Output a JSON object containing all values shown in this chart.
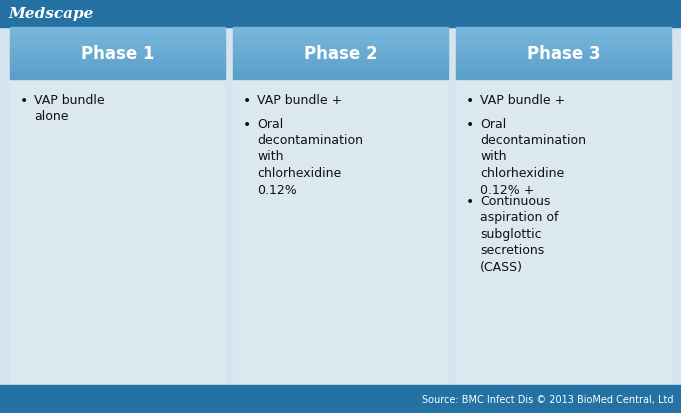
{
  "title": "Medscape",
  "title_color": "#ffffff",
  "top_bar_color": "#2471a3",
  "body_bg": "#d6e4f0",
  "cell_bg": "#dce8f0",
  "gap_color": "#ffffff",
  "footer_bg": "#2471a3",
  "footer_text": "Source: BMC Infect Dis © 2013 BioMed Central, Ltd",
  "footer_color": "#ffffff",
  "phases": [
    "Phase 1",
    "Phase 2",
    "Phase 3"
  ],
  "phase_header_bg_top": "#7ab8dc",
  "phase_header_bg_bot": "#5a9ec8",
  "phase_header_text": "#ffffff",
  "bullet_text": [
    [
      "VAP bundle\nalone"
    ],
    [
      "VAP bundle +",
      "Oral\ndecontamination\nwith\nchlorhexidine\n0.12%"
    ],
    [
      "VAP bundle +",
      "Oral\ndecontamination\nwith\nchlorhexidine\n0.12% +",
      "Continuous\naspiration of\nsubglottic\nsecretions\n(CASS)"
    ]
  ],
  "text_color": "#111111",
  "figwidth": 6.81,
  "figheight": 4.14,
  "dpi": 100
}
